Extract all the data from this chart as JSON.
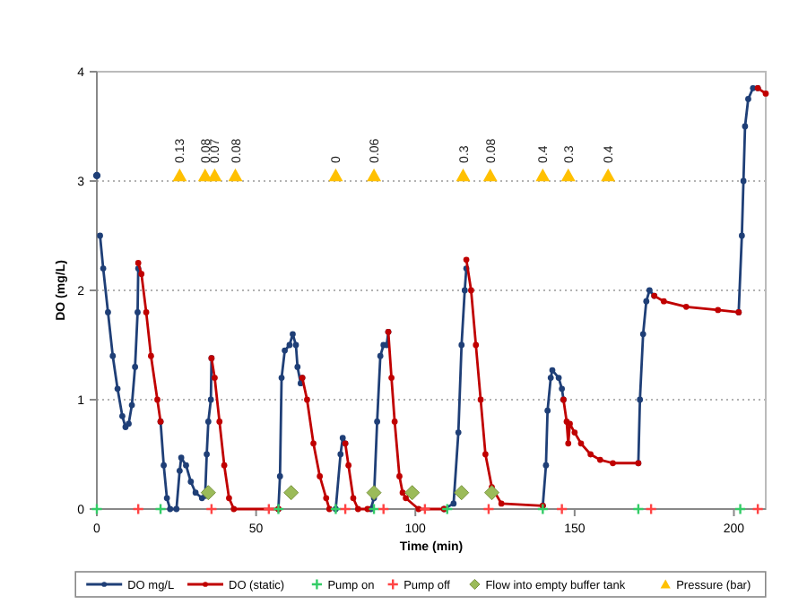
{
  "chart_data": {
    "type": "line",
    "xlabel": "Time (min)",
    "ylabel": "DO (mg/L)",
    "xlim": [
      0,
      210
    ],
    "ylim": [
      0,
      4
    ],
    "xticks": [
      0,
      50,
      100,
      150,
      200
    ],
    "yticks": [
      0,
      1,
      2,
      3,
      4
    ],
    "grid": "y",
    "legend": "bottom",
    "annotations": [
      {
        "text": "0.13",
        "x": 26,
        "y": 3.05
      },
      {
        "text": "0.08",
        "x": 34,
        "y": 3.05
      },
      {
        "text": "0.07",
        "x": 37,
        "y": 3.05
      },
      {
        "text": "0.08",
        "x": 43.5,
        "y": 3.05
      },
      {
        "text": "0",
        "x": 75,
        "y": 3.05
      },
      {
        "text": "0.06",
        "x": 87,
        "y": 3.05
      },
      {
        "text": "0.3",
        "x": 115,
        "y": 3.05
      },
      {
        "text": "0.08",
        "x": 123.5,
        "y": 3.05
      },
      {
        "text": "0.4",
        "x": 140,
        "y": 3.05
      },
      {
        "text": "0.3",
        "x": 148,
        "y": 3.05
      },
      {
        "text": "0.4",
        "x": 160.5,
        "y": 3.05
      }
    ],
    "series": [
      {
        "type": "scatter",
        "color": "#1f3f77",
        "marker": "circle",
        "x": [
          0
        ],
        "values": [
          3.05
        ]
      },
      {
        "name": "DO mg/L",
        "color": "#1f3f77",
        "marker": "circle",
        "x": [
          1,
          2,
          3.5,
          5,
          6.5,
          8,
          9,
          10,
          11,
          12,
          12.8,
          13,
          13.5,
          20,
          21,
          22,
          23,
          25,
          26,
          26.5,
          28,
          29.5,
          31,
          33,
          34,
          34.5,
          35,
          35.8,
          36,
          36.5,
          57,
          57.5,
          58,
          59,
          60.5,
          61.5,
          62.5,
          63,
          64,
          64.5,
          65,
          75,
          76.5,
          77.2,
          78,
          78.5,
          86,
          87,
          88,
          89,
          90,
          91,
          91.5,
          92,
          109,
          112,
          113.5,
          114.5,
          115.5,
          116,
          116.5,
          140,
          141,
          141.5,
          142.5,
          143,
          145,
          146,
          146.5,
          147,
          170,
          170.5,
          171.5,
          172.5,
          173.5,
          175,
          176,
          201.5,
          202.5,
          203,
          203.5,
          204.5,
          206,
          207.5
        ],
        "values": [
          2.5,
          2.2,
          1.8,
          1.4,
          1.1,
          0.85,
          0.75,
          0.78,
          0.95,
          1.3,
          1.8,
          2.2,
          null,
          0.8,
          0.4,
          0.1,
          0,
          0,
          0.35,
          0.47,
          0.4,
          0.25,
          0.15,
          0.1,
          0.12,
          0.5,
          0.8,
          1.0,
          1.38,
          null,
          0,
          0.3,
          1.2,
          1.45,
          1.5,
          1.6,
          1.5,
          1.3,
          1.15,
          1.2,
          null,
          0,
          0.5,
          0.65,
          0.6,
          null,
          0,
          0.1,
          0.8,
          1.4,
          1.5,
          1.5,
          1.62,
          null,
          0,
          0.05,
          0.7,
          1.5,
          2.0,
          2.2,
          null,
          0.03,
          0.4,
          0.9,
          1.2,
          1.27,
          1.2,
          1.1,
          1.0,
          null,
          0.42,
          1.0,
          1.6,
          1.9,
          2.0,
          1.95,
          null,
          1.8,
          2.5,
          3.0,
          3.5,
          3.75,
          3.85,
          3.85
        ]
      },
      {
        "name": "DO (static)",
        "color": "#c00000",
        "marker": "circle",
        "x": [
          13,
          14,
          15.5,
          17,
          19,
          20,
          20.5,
          36,
          37,
          38.5,
          40,
          41.5,
          43,
          57,
          57.5,
          64.5,
          66,
          68,
          70,
          72,
          73,
          73.5,
          78,
          79,
          80.5,
          82,
          85,
          85.5,
          91.5,
          92.5,
          93.5,
          95,
          96,
          97,
          101,
          109,
          109.5,
          116,
          117.5,
          119,
          120.5,
          122,
          124,
          127,
          140,
          140.5,
          146.5,
          147.5,
          148,
          148.5,
          150,
          152,
          155,
          158,
          162,
          170,
          170.5,
          175,
          178,
          185,
          195,
          201.5,
          202,
          207.5,
          210
        ],
        "values": [
          2.25,
          2.15,
          1.8,
          1.4,
          1.0,
          0.8,
          null,
          1.38,
          1.2,
          0.8,
          0.4,
          0.1,
          0,
          0,
          null,
          1.2,
          1.0,
          0.6,
          0.3,
          0.1,
          0,
          null,
          0.6,
          0.4,
          0.1,
          0,
          0,
          null,
          1.62,
          1.2,
          0.8,
          0.3,
          0.15,
          0.1,
          0,
          0,
          null,
          2.28,
          2.0,
          1.5,
          1.0,
          0.5,
          0.2,
          0.05,
          0.03,
          null,
          1.0,
          0.8,
          0.6,
          0.78,
          0.7,
          0.6,
          0.5,
          0.45,
          0.42,
          0.42,
          null,
          1.95,
          1.9,
          1.85,
          1.82,
          1.8,
          null,
          3.85,
          3.8
        ]
      },
      {
        "name": "Pump on",
        "type": "scatter",
        "color": "#33cc66",
        "marker": "cross",
        "x": [
          0,
          20,
          57,
          75,
          87,
          110,
          140,
          170,
          202
        ],
        "values": [
          0,
          0,
          0,
          0,
          0,
          0,
          0,
          0,
          0
        ]
      },
      {
        "name": "Pump off",
        "type": "scatter",
        "color": "#ff4444",
        "marker": "cross",
        "x": [
          13,
          36,
          54,
          78,
          90,
          103,
          123,
          146,
          174,
          207.5
        ],
        "values": [
          0,
          0,
          0,
          0,
          0,
          0,
          0,
          0,
          0,
          0
        ]
      },
      {
        "name": "Flow into empty buffer tank",
        "type": "scatter",
        "color": "#9bbb59",
        "marker": "diamond",
        "x": [
          35,
          61,
          87,
          99,
          114.5,
          124
        ],
        "values": [
          0.15,
          0.15,
          0.15,
          0.15,
          0.15,
          0.15
        ]
      },
      {
        "name": "Pressure (bar)",
        "type": "scatter",
        "color": "#ffc000",
        "marker": "triangle",
        "x": [
          26,
          34,
          37,
          43.5,
          75,
          87,
          115,
          123.5,
          140,
          148,
          160.5
        ],
        "values": [
          3.05,
          3.05,
          3.05,
          3.05,
          3.05,
          3.05,
          3.05,
          3.05,
          3.05,
          3.05,
          3.05
        ]
      }
    ]
  }
}
